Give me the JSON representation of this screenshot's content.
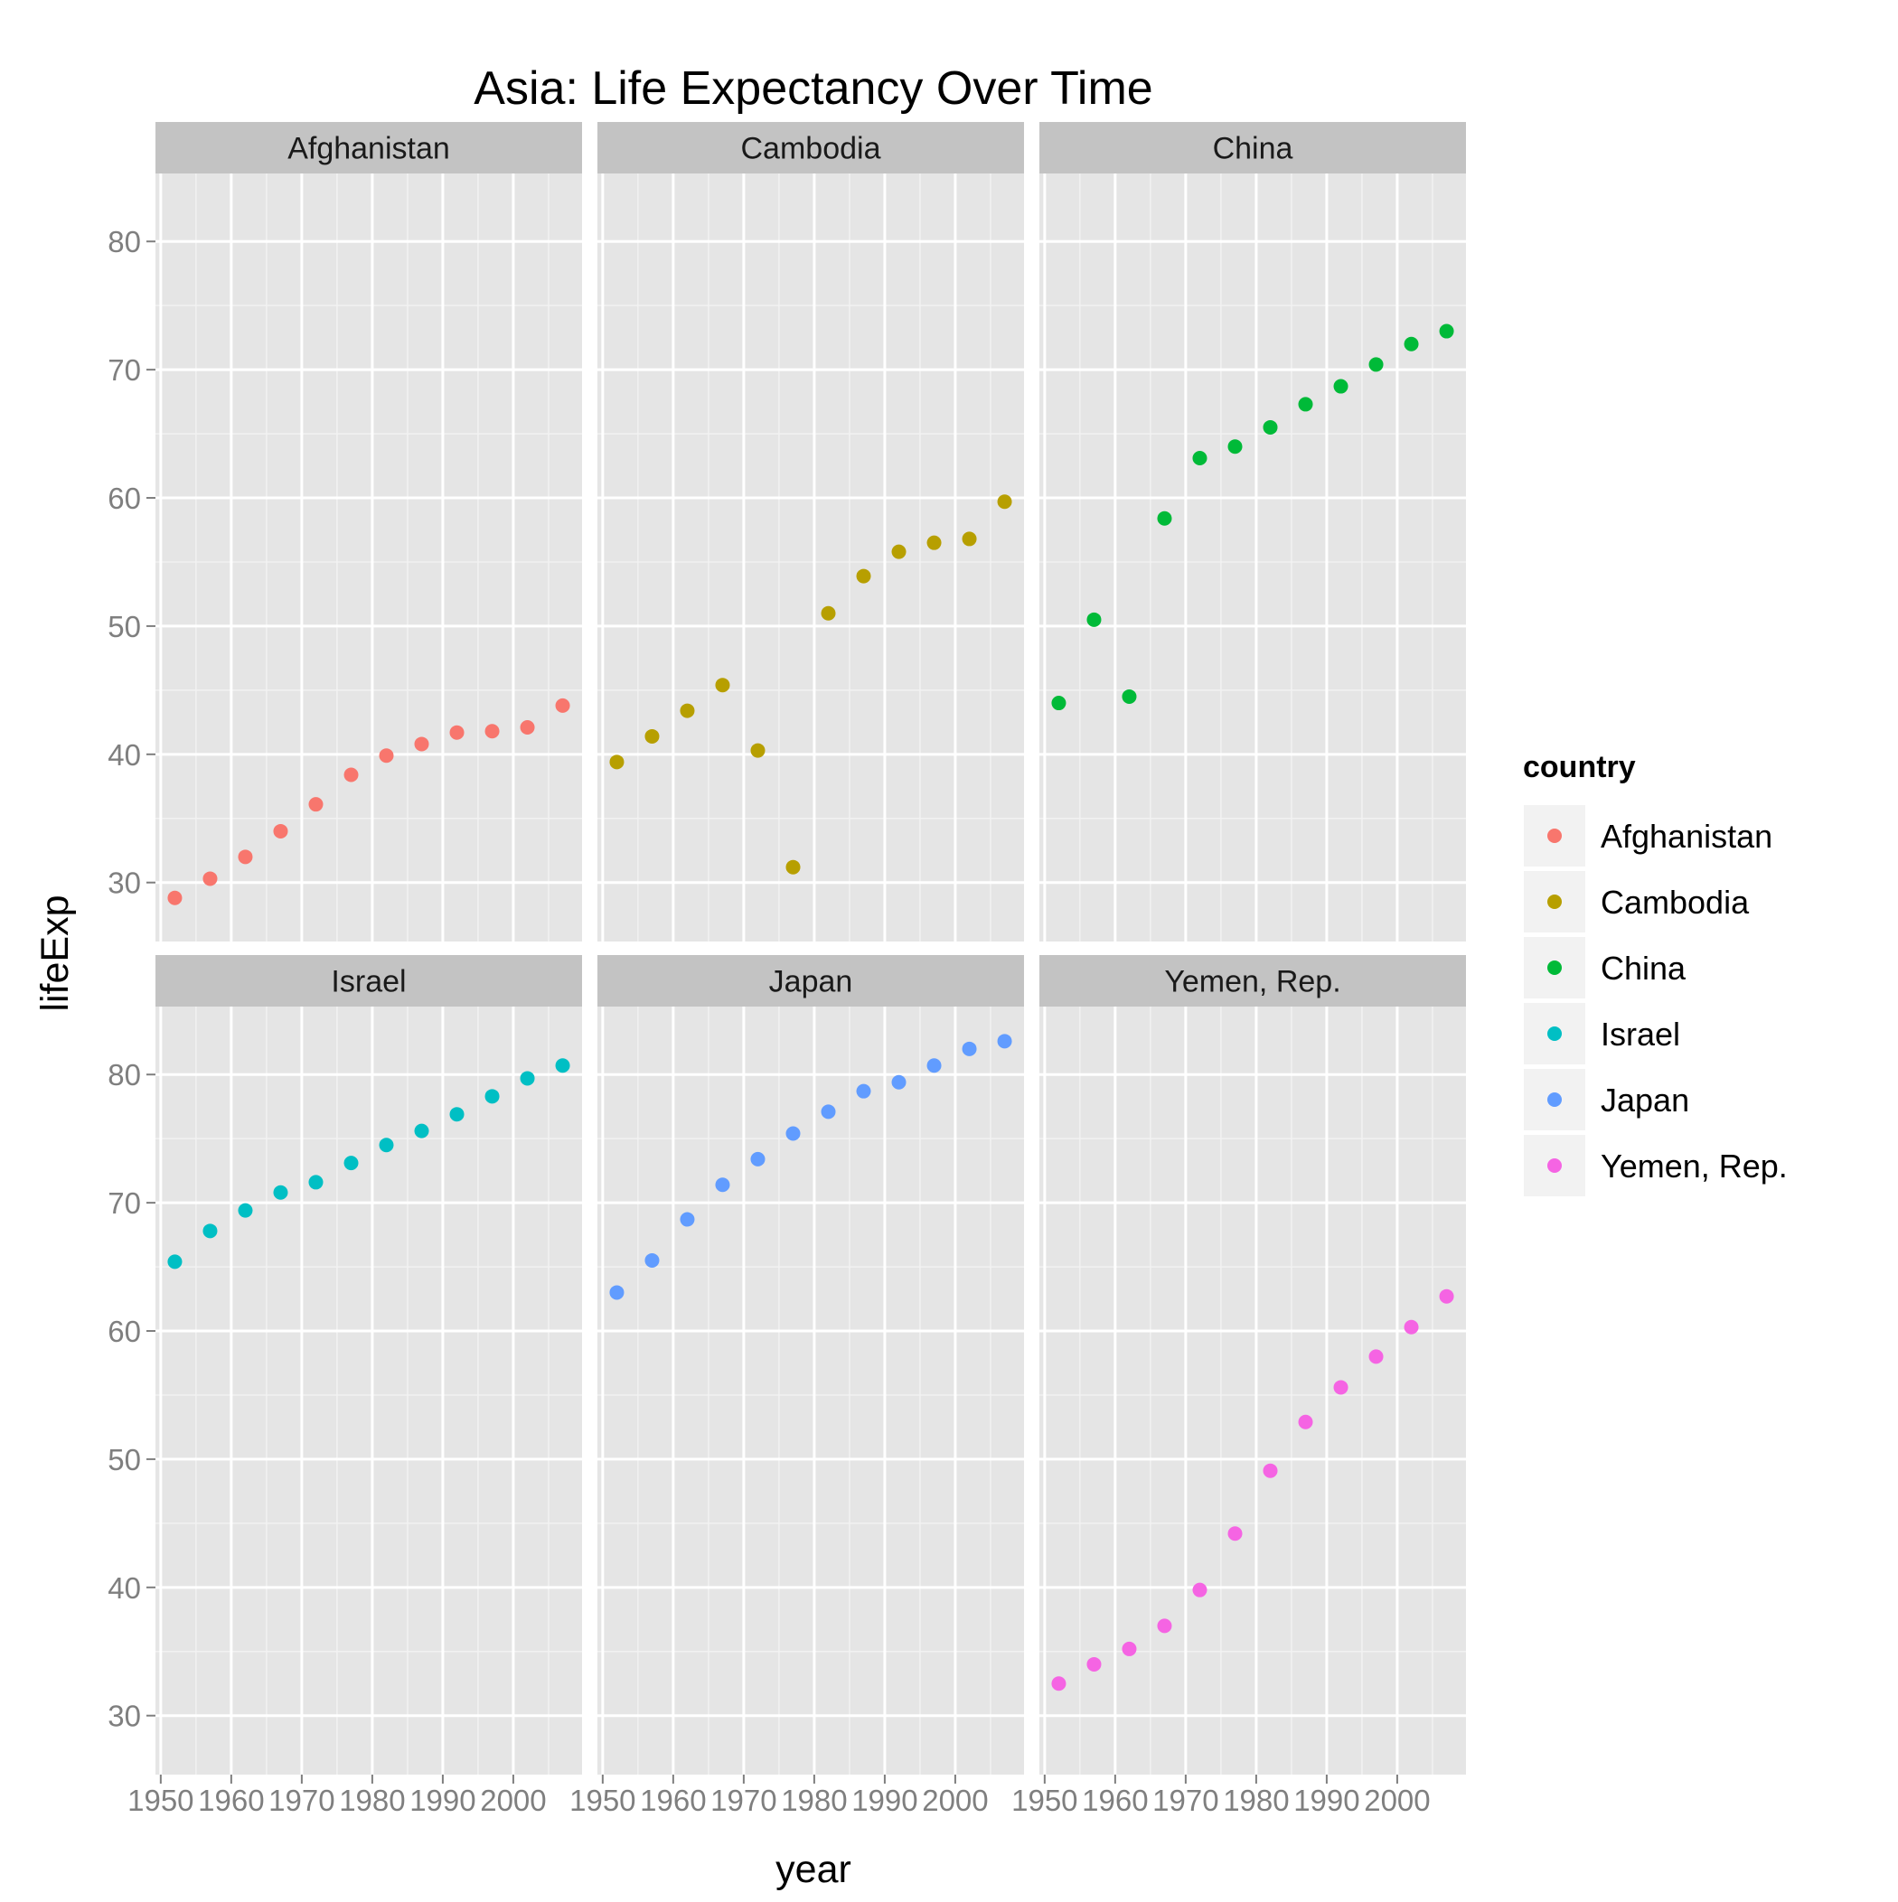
{
  "chart_data": {
    "type": "scatter",
    "title": "Asia: Life Expectancy Over Time",
    "xlabel": "year",
    "ylabel": "lifeExp",
    "xlim": [
      1949.25,
      2009.75
    ],
    "ylim": [
      25.4,
      85.3
    ],
    "x_ticks": [
      1950,
      1960,
      1970,
      1980,
      1990,
      2000
    ],
    "y_ticks": [
      30,
      40,
      50,
      60,
      70,
      80
    ],
    "grid": true,
    "legend": {
      "title": "country",
      "position": "right",
      "entries": [
        "Afghanistan",
        "Cambodia",
        "China",
        "Israel",
        "Japan",
        "Yemen, Rep."
      ]
    },
    "x": [
      1952,
      1957,
      1962,
      1967,
      1972,
      1977,
      1982,
      1987,
      1992,
      1997,
      2002,
      2007
    ],
    "panels": [
      {
        "name": "Afghanistan",
        "color": "#F8766D",
        "values": [
          28.8,
          30.3,
          32.0,
          34.0,
          36.1,
          38.4,
          39.9,
          40.8,
          41.7,
          41.8,
          42.1,
          43.8
        ]
      },
      {
        "name": "Cambodia",
        "color": "#B79F00",
        "values": [
          39.4,
          41.4,
          43.4,
          45.4,
          40.3,
          31.2,
          51.0,
          53.9,
          55.8,
          56.5,
          56.8,
          59.7
        ]
      },
      {
        "name": "China",
        "color": "#00BA38",
        "values": [
          44.0,
          50.5,
          44.5,
          58.4,
          63.1,
          64.0,
          65.5,
          67.3,
          68.7,
          70.4,
          72.0,
          73.0
        ]
      },
      {
        "name": "Israel",
        "color": "#00BFC4",
        "values": [
          65.4,
          67.8,
          69.4,
          70.8,
          71.6,
          73.1,
          74.5,
          75.6,
          76.9,
          78.3,
          79.7,
          80.7
        ]
      },
      {
        "name": "Japan",
        "color": "#619CFF",
        "values": [
          63.0,
          65.5,
          68.7,
          71.4,
          73.4,
          75.4,
          77.1,
          78.7,
          79.4,
          80.7,
          82.0,
          82.6
        ]
      },
      {
        "name": "Yemen, Rep.",
        "color": "#F564E3",
        "values": [
          32.5,
          34.0,
          35.2,
          37.0,
          39.8,
          44.2,
          49.1,
          52.9,
          55.6,
          58.0,
          60.3,
          62.7
        ]
      }
    ]
  }
}
